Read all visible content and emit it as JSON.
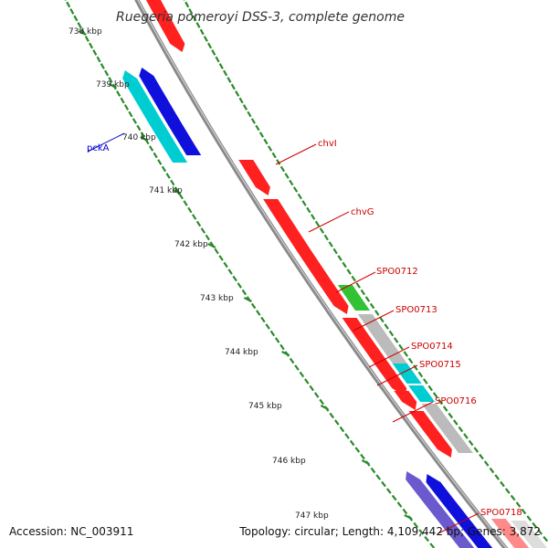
{
  "title": "Ruegeria pomeroyi DSS-3, complete genome",
  "footer": {
    "accession": "Accession: NC_003911",
    "topology": "Topology: circular; Length: 4,109,442 bp; Genes: 3,872"
  },
  "colors": {
    "backbone": "#8a8a8a",
    "tick": "#2a8a2a",
    "forward_gene": "#ff2020",
    "reverse_gene": "#1010dd",
    "reverse_gene_light": "#6a5acd",
    "highlight_cyan": "#00cdd1",
    "green": "#33c233",
    "grey": "#bbbbbb",
    "red_label": "#cc0000",
    "blue_label": "#0000cc"
  },
  "kbp_ticks": [
    "738 kbp",
    "739 kbp",
    "740 kbp",
    "741 kbp",
    "742 kbp",
    "743 kbp",
    "744 kbp",
    "745 kbp",
    "746 kbp",
    "747 kbp"
  ],
  "gene_labels": [
    {
      "name": "pckA",
      "strand": "reverse"
    },
    {
      "name": "chvI",
      "strand": "forward"
    },
    {
      "name": "chvG",
      "strand": "forward"
    },
    {
      "name": "SPO0712",
      "strand": "forward"
    },
    {
      "name": "SPO0713",
      "strand": "forward"
    },
    {
      "name": "SPO0714",
      "strand": "forward"
    },
    {
      "name": "SPO0715",
      "strand": "forward"
    },
    {
      "name": "SPO0716",
      "strand": "forward"
    },
    {
      "name": "SPO0718",
      "strand": "forward"
    }
  ]
}
